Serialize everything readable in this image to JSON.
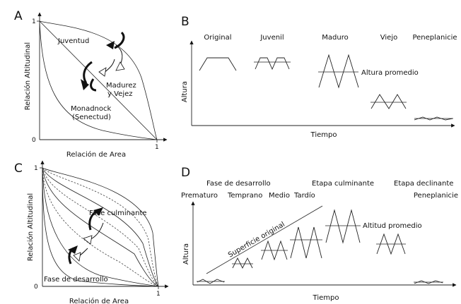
{
  "panels": {
    "a": {
      "letter": "A",
      "y_axis_label": "Relación Altitudinal",
      "x_axis_label": "Relación de Area",
      "tick_y_top": "1",
      "tick_origin": "0",
      "tick_x_right": "1",
      "curve_juventud": "Juventud",
      "curve_madurez_1": "Madurez",
      "curve_madurez_2": "y Vejez",
      "curve_monadnock_1": "Monadnock",
      "curve_monadnock_2": "(Senectud)"
    },
    "b": {
      "letter": "B",
      "stages": [
        "Original",
        "Juvenil",
        "Maduro",
        "Viejo",
        "Peneplanicie"
      ],
      "mean_height_label": "Altura promedio",
      "y_axis_label": "Altura",
      "x_axis_label": "Tiempo"
    },
    "c": {
      "letter": "C",
      "y_axis_label": "Relación Altitudinal",
      "x_axis_label": "Relación de Area",
      "tick_y_top": "1",
      "tick_origin": "0",
      "tick_x_right": "1",
      "phase_culminante": "Fase culminante",
      "phase_desarrollo": "Fase de desarrollo"
    },
    "d": {
      "letter": "D",
      "phase_desarrollo": "Fase de desarrollo",
      "phase_culminante": "Etapa culminante",
      "phase_declinante": "Etapa declinante",
      "substages": [
        "Prematuro",
        "Temprano",
        "Medio",
        "Tardío"
      ],
      "peneplain": "Peneplanicie",
      "original_surface": "Superficie original",
      "mean_altitude_label": "Altitud promedio",
      "y_axis_label": "Altura",
      "x_axis_label": "Tiempo"
    }
  },
  "colors": {
    "ink": "#111111",
    "background": "#ffffff"
  }
}
